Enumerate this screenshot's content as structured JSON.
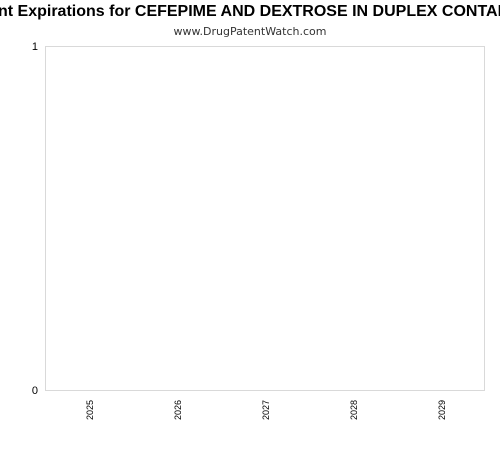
{
  "chart_data": {
    "type": "bar",
    "title": "Patent Expirations for CEFEPIME AND DEXTROSE IN DUPLEX CONTAINER",
    "subtitle": "www.DrugPatentWatch.com",
    "categories": [
      "2025",
      "2026",
      "2027",
      "2028",
      "2029"
    ],
    "values": [
      0,
      0,
      0,
      0,
      0
    ],
    "ylim": [
      0,
      1
    ],
    "yticks": [
      "0",
      "1"
    ],
    "xlabel": "",
    "ylabel": "",
    "grid": false,
    "colors": {
      "plot_border": "#d9d9d9",
      "tick_text": "#000000",
      "bar": "#4a7ebb"
    }
  }
}
